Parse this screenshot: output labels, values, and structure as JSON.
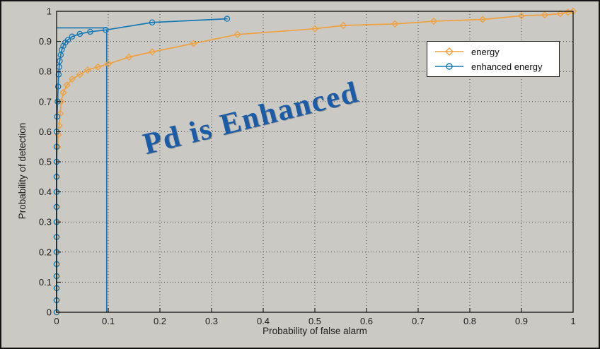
{
  "chart_data": {
    "type": "line",
    "title": "",
    "xlabel": "Probability of false alarm",
    "ylabel": "Probability of detection",
    "xlim": [
      0,
      1
    ],
    "ylim": [
      0,
      1
    ],
    "xticks": [
      "0",
      "0.1",
      "0.2",
      "0.3",
      "0.4",
      "0.5",
      "0.6",
      "0.7",
      "0.8",
      "0.9",
      "1"
    ],
    "yticks": [
      "0",
      "0.1",
      "0.2",
      "0.3",
      "0.4",
      "0.5",
      "0.6",
      "0.7",
      "0.8",
      "0.9",
      "1"
    ],
    "grid": "dotted",
    "grid_color": "#4a4a4a",
    "background": "#cac9c4",
    "legend_position": "upper right inside",
    "annotation": {
      "text": "Pd is Enhanced",
      "color": "#1b5ca8"
    },
    "series": [
      {
        "name": "energy",
        "color": "#f0a13f",
        "marker": "diamond",
        "points": [
          [
            0,
            0
          ],
          [
            0,
            0.04
          ],
          [
            0,
            0.08
          ],
          [
            0,
            0.12
          ],
          [
            0,
            0.16
          ],
          [
            0,
            0.2
          ],
          [
            0,
            0.25
          ],
          [
            0,
            0.3
          ],
          [
            0,
            0.35
          ],
          [
            0,
            0.4
          ],
          [
            0,
            0.45
          ],
          [
            0,
            0.5
          ],
          [
            0.002,
            0.55
          ],
          [
            0.003,
            0.59
          ],
          [
            0.005,
            0.62
          ],
          [
            0.007,
            0.66
          ],
          [
            0.009,
            0.7
          ],
          [
            0.013,
            0.73
          ],
          [
            0.02,
            0.755
          ],
          [
            0.03,
            0.775
          ],
          [
            0.045,
            0.79
          ],
          [
            0.06,
            0.805
          ],
          [
            0.08,
            0.815
          ],
          [
            0.1,
            0.825
          ],
          [
            0.14,
            0.848
          ],
          [
            0.185,
            0.865
          ],
          [
            0.265,
            0.893
          ],
          [
            0.35,
            0.923
          ],
          [
            0.5,
            0.942
          ],
          [
            0.555,
            0.953
          ],
          [
            0.655,
            0.958
          ],
          [
            0.73,
            0.967
          ],
          [
            0.825,
            0.973
          ],
          [
            0.9,
            0.985
          ],
          [
            0.945,
            0.988
          ],
          [
            0.975,
            0.992
          ],
          [
            0.99,
            0.997
          ],
          [
            1,
            1
          ]
        ]
      },
      {
        "name": "enhanced energy",
        "color": "#1678b4",
        "marker": "circle",
        "points": [
          [
            0,
            0
          ],
          [
            0,
            0.04
          ],
          [
            0,
            0.08
          ],
          [
            0,
            0.12
          ],
          [
            0,
            0.16
          ],
          [
            0,
            0.2
          ],
          [
            0,
            0.25
          ],
          [
            0,
            0.3
          ],
          [
            0,
            0.35
          ],
          [
            0,
            0.4
          ],
          [
            0,
            0.45
          ],
          [
            0,
            0.5
          ],
          [
            0,
            0.55
          ],
          [
            0,
            0.6
          ],
          [
            0.001,
            0.65
          ],
          [
            0.002,
            0.7
          ],
          [
            0.003,
            0.75
          ],
          [
            0.004,
            0.79
          ],
          [
            0.005,
            0.815
          ],
          [
            0.006,
            0.835
          ],
          [
            0.008,
            0.855
          ],
          [
            0.01,
            0.872
          ],
          [
            0.013,
            0.885
          ],
          [
            0.017,
            0.896
          ],
          [
            0.022,
            0.905
          ],
          [
            0.03,
            0.916
          ],
          [
            0.045,
            0.925
          ],
          [
            0.065,
            0.932
          ],
          [
            0.095,
            0.938
          ],
          [
            0.185,
            0.963
          ],
          [
            0.33,
            0.975
          ]
        ]
      }
    ],
    "reference_lines": [
      {
        "type": "vertical",
        "x": 0.097,
        "y_from": 0,
        "y_to": 0.94,
        "color": "#1678b4"
      },
      {
        "type": "horizontal",
        "y": 0.945,
        "x_from": 0,
        "x_to": 0.097,
        "color": "#1678b4"
      }
    ]
  }
}
